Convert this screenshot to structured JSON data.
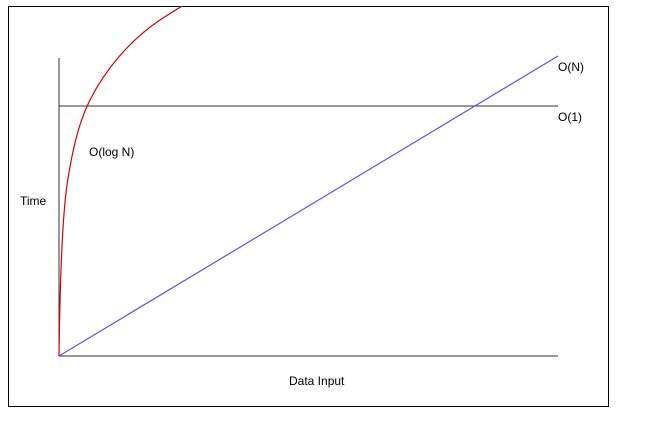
{
  "labels": {
    "o_n": "O(N)",
    "o_1": "O(1)",
    "o_log_n": "O(log N)",
    "y_axis": "Time",
    "x_axis": "Data Input"
  }
}
